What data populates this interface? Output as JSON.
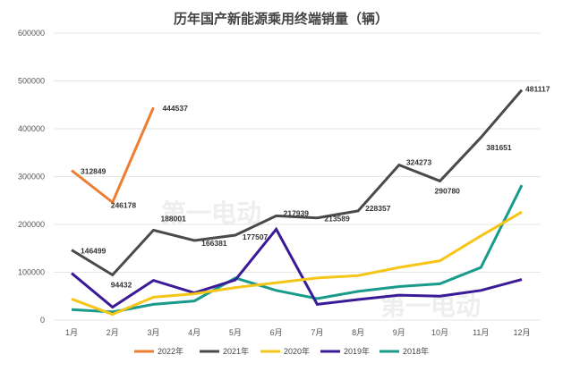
{
  "chart_data": {
    "type": "line",
    "title": "历年国产新能源乘用终端销量（辆）",
    "categories": [
      "1月",
      "2月",
      "3月",
      "4月",
      "5月",
      "6月",
      "7月",
      "8月",
      "9月",
      "10月",
      "11月",
      "12月"
    ],
    "ylim": [
      0,
      600000
    ],
    "yticks": [
      0,
      100000,
      200000,
      300000,
      400000,
      500000,
      600000
    ],
    "grid": true,
    "legend_position": "bottom",
    "series": [
      {
        "name": "2022年",
        "color": "#ed7d31",
        "values": [
          312849,
          246178,
          444537,
          null,
          null,
          null,
          null,
          null,
          null,
          null,
          null,
          null
        ],
        "labels": [
          "312849",
          "246178",
          "444537"
        ]
      },
      {
        "name": "2021年",
        "color": "#4a4a4a",
        "values": [
          146499,
          94432,
          188001,
          166381,
          177507,
          217939,
          213589,
          228357,
          324273,
          290780,
          381651,
          481117
        ],
        "labels": [
          "146499",
          "94432",
          "188001",
          "166381",
          "177507",
          "217939",
          "213589",
          "228357",
          "324273",
          "290780",
          "381651",
          "481117"
        ]
      },
      {
        "name": "2020年",
        "color": "#f5c518",
        "values": [
          44000,
          12000,
          48000,
          55000,
          68000,
          78000,
          88000,
          93000,
          110000,
          124000,
          176000,
          226000
        ]
      },
      {
        "name": "2019年",
        "color": "#3a1a96",
        "values": [
          98000,
          27000,
          83000,
          57000,
          84000,
          190000,
          33000,
          43000,
          52000,
          50000,
          62000,
          85000
        ]
      },
      {
        "name": "2018年",
        "color": "#1a9a8a",
        "values": [
          22000,
          17000,
          33000,
          40000,
          88000,
          62000,
          45000,
          60000,
          70000,
          76000,
          110000,
          282000
        ]
      }
    ]
  }
}
